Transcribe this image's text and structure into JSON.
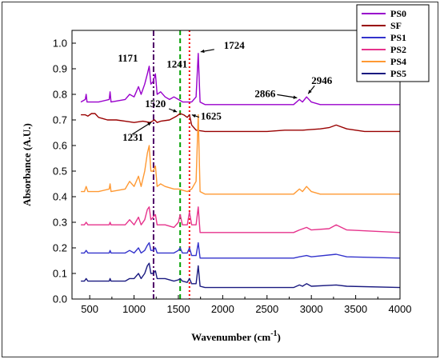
{
  "chart_data": {
    "type": "line",
    "xlabel": "Wavenumber (cm",
    "xlabel_sup": "-1",
    "xlabel_close": ")",
    "ylabel": "Absorbance (A.U.)",
    "xlim": [
      300,
      4000
    ],
    "ylim": [
      0.0,
      1.05
    ],
    "x_ticks": [
      "500",
      "1000",
      "1500",
      "2000",
      "2500",
      "3000",
      "3500",
      "4000"
    ],
    "x_tick_values": [
      500,
      1000,
      1500,
      2000,
      2500,
      3000,
      3500,
      4000
    ],
    "y_ticks": [
      "0.0",
      "0.1",
      "0.2",
      "0.3",
      "0.4",
      "0.5",
      "0.6",
      "0.7",
      "0.8",
      "0.9",
      "1.0"
    ],
    "y_tick_values": [
      0.0,
      0.1,
      0.2,
      0.3,
      0.4,
      0.5,
      0.6,
      0.7,
      0.8,
      0.9,
      1.0
    ],
    "legend_position": "top-right",
    "series": [
      {
        "name": "PS0",
        "color": "#9900cc",
        "points": [
          [
            400,
            0.77
          ],
          [
            450,
            0.78
          ],
          [
            460,
            0.8
          ],
          [
            470,
            0.77
          ],
          [
            600,
            0.77
          ],
          [
            720,
            0.78
          ],
          [
            730,
            0.81
          ],
          [
            740,
            0.77
          ],
          [
            900,
            0.78
          ],
          [
            950,
            0.8
          ],
          [
            1000,
            0.79
          ],
          [
            1050,
            0.83
          ],
          [
            1080,
            0.8
          ],
          [
            1120,
            0.84
          ],
          [
            1150,
            0.88
          ],
          [
            1171,
            0.91
          ],
          [
            1190,
            0.84
          ],
          [
            1215,
            0.85
          ],
          [
            1241,
            0.88
          ],
          [
            1260,
            0.8
          ],
          [
            1300,
            0.81
          ],
          [
            1350,
            0.79
          ],
          [
            1400,
            0.78
          ],
          [
            1450,
            0.79
          ],
          [
            1500,
            0.78
          ],
          [
            1550,
            0.77
          ],
          [
            1650,
            0.77
          ],
          [
            1700,
            0.79
          ],
          [
            1724,
            0.96
          ],
          [
            1745,
            0.77
          ],
          [
            1800,
            0.76
          ],
          [
            2500,
            0.76
          ],
          [
            2800,
            0.76
          ],
          [
            2866,
            0.78
          ],
          [
            2900,
            0.77
          ],
          [
            2946,
            0.79
          ],
          [
            3000,
            0.77
          ],
          [
            3100,
            0.76
          ],
          [
            4000,
            0.76
          ]
        ]
      },
      {
        "name": "SF",
        "color": "#990000",
        "points": [
          [
            400,
            0.72
          ],
          [
            450,
            0.72
          ],
          [
            480,
            0.715
          ],
          [
            520,
            0.725
          ],
          [
            560,
            0.725
          ],
          [
            600,
            0.71
          ],
          [
            700,
            0.7
          ],
          [
            800,
            0.7
          ],
          [
            900,
            0.695
          ],
          [
            1000,
            0.69
          ],
          [
            1100,
            0.695
          ],
          [
            1180,
            0.69
          ],
          [
            1231,
            0.7
          ],
          [
            1260,
            0.69
          ],
          [
            1300,
            0.695
          ],
          [
            1400,
            0.7
          ],
          [
            1480,
            0.715
          ],
          [
            1520,
            0.725
          ],
          [
            1560,
            0.72
          ],
          [
            1600,
            0.71
          ],
          [
            1625,
            0.72
          ],
          [
            1650,
            0.68
          ],
          [
            1700,
            0.66
          ],
          [
            1800,
            0.655
          ],
          [
            2000,
            0.655
          ],
          [
            2500,
            0.655
          ],
          [
            2700,
            0.66
          ],
          [
            2900,
            0.66
          ],
          [
            3100,
            0.665
          ],
          [
            3200,
            0.67
          ],
          [
            3280,
            0.68
          ],
          [
            3400,
            0.665
          ],
          [
            3600,
            0.655
          ],
          [
            4000,
            0.655
          ]
        ]
      },
      {
        "name": "PS1",
        "color": "#3333cc",
        "points": [
          [
            400,
            0.18
          ],
          [
            440,
            0.18
          ],
          [
            460,
            0.19
          ],
          [
            480,
            0.18
          ],
          [
            600,
            0.18
          ],
          [
            720,
            0.18
          ],
          [
            730,
            0.19
          ],
          [
            740,
            0.18
          ],
          [
            900,
            0.18
          ],
          [
            950,
            0.19
          ],
          [
            1000,
            0.18
          ],
          [
            1050,
            0.2
          ],
          [
            1080,
            0.18
          ],
          [
            1120,
            0.19
          ],
          [
            1150,
            0.21
          ],
          [
            1171,
            0.22
          ],
          [
            1190,
            0.19
          ],
          [
            1215,
            0.19
          ],
          [
            1241,
            0.2
          ],
          [
            1260,
            0.18
          ],
          [
            1350,
            0.18
          ],
          [
            1450,
            0.18
          ],
          [
            1500,
            0.19
          ],
          [
            1520,
            0.2
          ],
          [
            1545,
            0.18
          ],
          [
            1600,
            0.18
          ],
          [
            1625,
            0.2
          ],
          [
            1650,
            0.17
          ],
          [
            1700,
            0.17
          ],
          [
            1724,
            0.22
          ],
          [
            1745,
            0.16
          ],
          [
            1800,
            0.16
          ],
          [
            2800,
            0.16
          ],
          [
            2866,
            0.165
          ],
          [
            2946,
            0.17
          ],
          [
            3000,
            0.165
          ],
          [
            3280,
            0.175
          ],
          [
            3400,
            0.165
          ],
          [
            4000,
            0.16
          ]
        ]
      },
      {
        "name": "PS2",
        "color": "#e6338c",
        "points": [
          [
            400,
            0.29
          ],
          [
            440,
            0.29
          ],
          [
            460,
            0.3
          ],
          [
            480,
            0.29
          ],
          [
            600,
            0.29
          ],
          [
            720,
            0.29
          ],
          [
            730,
            0.3
          ],
          [
            740,
            0.29
          ],
          [
            900,
            0.29
          ],
          [
            950,
            0.31
          ],
          [
            1000,
            0.29
          ],
          [
            1050,
            0.32
          ],
          [
            1080,
            0.29
          ],
          [
            1120,
            0.31
          ],
          [
            1150,
            0.35
          ],
          [
            1171,
            0.36
          ],
          [
            1190,
            0.31
          ],
          [
            1215,
            0.32
          ],
          [
            1241,
            0.33
          ],
          [
            1260,
            0.29
          ],
          [
            1350,
            0.29
          ],
          [
            1450,
            0.28
          ],
          [
            1500,
            0.3
          ],
          [
            1520,
            0.33
          ],
          [
            1545,
            0.29
          ],
          [
            1600,
            0.29
          ],
          [
            1625,
            0.34
          ],
          [
            1650,
            0.29
          ],
          [
            1700,
            0.29
          ],
          [
            1724,
            0.36
          ],
          [
            1745,
            0.26
          ],
          [
            1800,
            0.26
          ],
          [
            2800,
            0.26
          ],
          [
            2866,
            0.27
          ],
          [
            2946,
            0.28
          ],
          [
            3000,
            0.27
          ],
          [
            3200,
            0.275
          ],
          [
            3280,
            0.29
          ],
          [
            3400,
            0.27
          ],
          [
            4000,
            0.26
          ]
        ]
      },
      {
        "name": "PS4",
        "color": "#ff9933",
        "points": [
          [
            400,
            0.42
          ],
          [
            440,
            0.42
          ],
          [
            460,
            0.44
          ],
          [
            480,
            0.42
          ],
          [
            600,
            0.42
          ],
          [
            720,
            0.43
          ],
          [
            730,
            0.45
          ],
          [
            740,
            0.42
          ],
          [
            900,
            0.43
          ],
          [
            950,
            0.46
          ],
          [
            1000,
            0.44
          ],
          [
            1050,
            0.48
          ],
          [
            1080,
            0.44
          ],
          [
            1120,
            0.5
          ],
          [
            1150,
            0.57
          ],
          [
            1171,
            0.6
          ],
          [
            1190,
            0.5
          ],
          [
            1215,
            0.5
          ],
          [
            1241,
            0.52
          ],
          [
            1260,
            0.44
          ],
          [
            1300,
            0.45
          ],
          [
            1350,
            0.44
          ],
          [
            1450,
            0.43
          ],
          [
            1500,
            0.43
          ],
          [
            1600,
            0.42
          ],
          [
            1650,
            0.43
          ],
          [
            1700,
            0.46
          ],
          [
            1724,
            0.72
          ],
          [
            1745,
            0.42
          ],
          [
            1800,
            0.41
          ],
          [
            2800,
            0.41
          ],
          [
            2866,
            0.43
          ],
          [
            2900,
            0.42
          ],
          [
            2946,
            0.44
          ],
          [
            3000,
            0.42
          ],
          [
            3100,
            0.41
          ],
          [
            4000,
            0.41
          ]
        ]
      },
      {
        "name": "PS5",
        "color": "#1a1a80",
        "points": [
          [
            400,
            0.07
          ],
          [
            440,
            0.07
          ],
          [
            460,
            0.08
          ],
          [
            480,
            0.07
          ],
          [
            600,
            0.07
          ],
          [
            720,
            0.07
          ],
          [
            730,
            0.08
          ],
          [
            740,
            0.07
          ],
          [
            900,
            0.07
          ],
          [
            950,
            0.08
          ],
          [
            1000,
            0.08
          ],
          [
            1050,
            0.1
          ],
          [
            1080,
            0.08
          ],
          [
            1120,
            0.1
          ],
          [
            1150,
            0.13
          ],
          [
            1171,
            0.14
          ],
          [
            1190,
            0.1
          ],
          [
            1215,
            0.1
          ],
          [
            1241,
            0.11
          ],
          [
            1260,
            0.08
          ],
          [
            1350,
            0.08
          ],
          [
            1450,
            0.07
          ],
          [
            1500,
            0.075
          ],
          [
            1520,
            0.08
          ],
          [
            1545,
            0.07
          ],
          [
            1600,
            0.065
          ],
          [
            1625,
            0.08
          ],
          [
            1650,
            0.06
          ],
          [
            1700,
            0.06
          ],
          [
            1724,
            0.13
          ],
          [
            1745,
            0.05
          ],
          [
            1800,
            0.045
          ],
          [
            2800,
            0.045
          ],
          [
            2866,
            0.055
          ],
          [
            2900,
            0.05
          ],
          [
            2946,
            0.06
          ],
          [
            3000,
            0.05
          ],
          [
            3280,
            0.055
          ],
          [
            3400,
            0.05
          ],
          [
            4000,
            0.045
          ]
        ]
      }
    ],
    "reference_lines": [
      {
        "x": 1220,
        "color": "#4d0066",
        "style": "dash-dot"
      },
      {
        "x": 1520,
        "color": "#00a000",
        "style": "dashed"
      },
      {
        "x": 1625,
        "color": "#ff0000",
        "style": "dotted"
      }
    ],
    "annotations": [
      {
        "text": "1171",
        "x": 1171,
        "y": 0.91
      },
      {
        "text": "1241",
        "x": 1241,
        "y": 0.88
      },
      {
        "text": "1724",
        "x": 1724,
        "y": 0.96
      },
      {
        "text": "2866",
        "x": 2866,
        "y": 0.78
      },
      {
        "text": "2946",
        "x": 2946,
        "y": 0.79
      },
      {
        "text": "1520",
        "x": 1520,
        "y": 0.725
      },
      {
        "text": "1625",
        "x": 1625,
        "y": 0.72
      },
      {
        "text": "1231",
        "x": 1231,
        "y": 0.7
      }
    ]
  }
}
